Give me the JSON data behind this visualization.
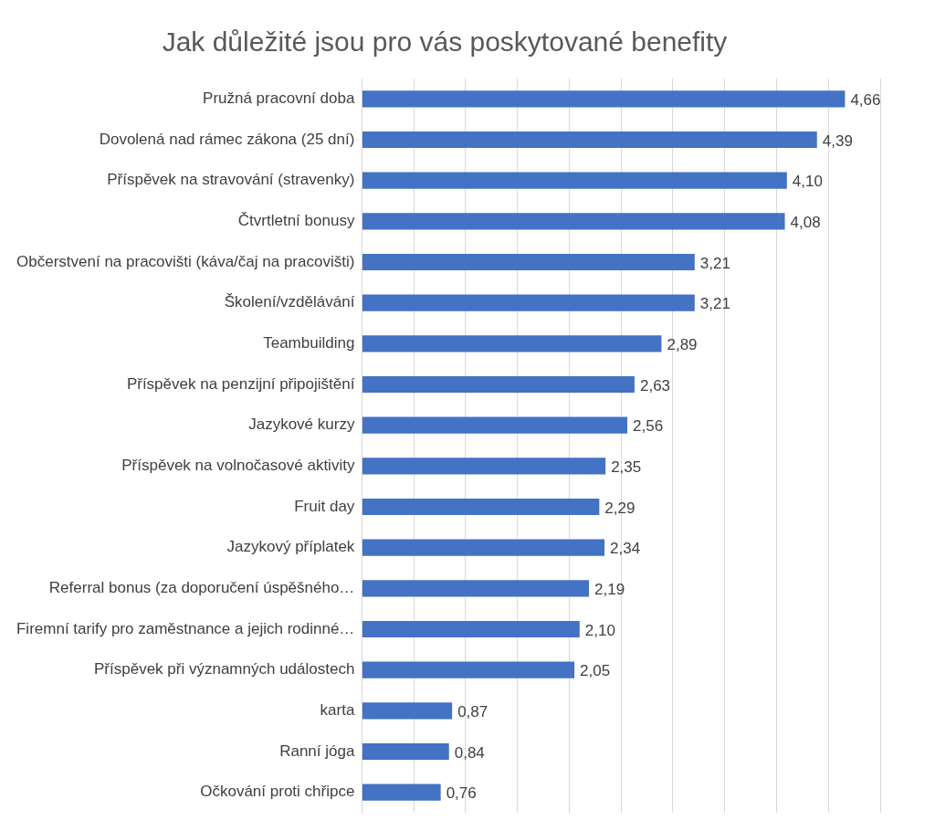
{
  "chart_data": {
    "type": "bar",
    "orientation": "horizontal",
    "title": "Jak důležité jsou pro vás poskytované benefity",
    "categories": [
      "Pružná pracovní doba",
      "Dovolená nad rámec zákona (25 dní)",
      "Příspěvek na stravování (stravenky)",
      "Čtvrtletní bonusy",
      "Občerstvení na pracovišti (káva/čaj na pracovišti)",
      "Školení/vzdělávání",
      "Teambuilding",
      "Příspěvek na penzijní připojištění",
      "Jazykové kurzy",
      "Příspěvek na volnočasové aktivity",
      "Fruit day",
      "Jazykový příplatek",
      "Referral bonus (za doporučení úspěšného…",
      "Firemní tarify pro zaměstnance a jejich rodinné…",
      "Příspěvek při významných událostech",
      "karta",
      "Ranní jóga",
      "Očkování proti chřipce"
    ],
    "values": [
      4.66,
      4.39,
      4.1,
      4.08,
      3.21,
      3.21,
      2.89,
      2.63,
      2.56,
      2.35,
      2.29,
      2.34,
      2.19,
      2.1,
      2.05,
      0.87,
      0.84,
      0.76
    ],
    "value_labels": [
      "4,66",
      "4,39",
      "4,10",
      "4,08",
      "3,21",
      "3,21",
      "2,89",
      "2,63",
      "2,56",
      "2,35",
      "2,29",
      "2,34",
      "2,19",
      "2,10",
      "2,05",
      "0,87",
      "0,84",
      "0,76"
    ],
    "color": "#4472c4",
    "xlim": [
      0,
      5
    ],
    "xticks": [
      {
        "value": 0,
        "label": null
      },
      {
        "value": 0.5,
        "label": null
      },
      {
        "value": 1,
        "label": null
      },
      {
        "value": 1.5,
        "label": null
      },
      {
        "value": 2,
        "label": null
      },
      {
        "value": 2.5,
        "label": null
      },
      {
        "value": 3,
        "label": null
      },
      {
        "value": 3.5,
        "label": null
      },
      {
        "value": 4,
        "label": null
      },
      {
        "value": 4.5,
        "label": null
      },
      {
        "value": 5,
        "label": null
      }
    ],
    "grid": "x",
    "tick_labels": "y",
    "legend": false
  }
}
